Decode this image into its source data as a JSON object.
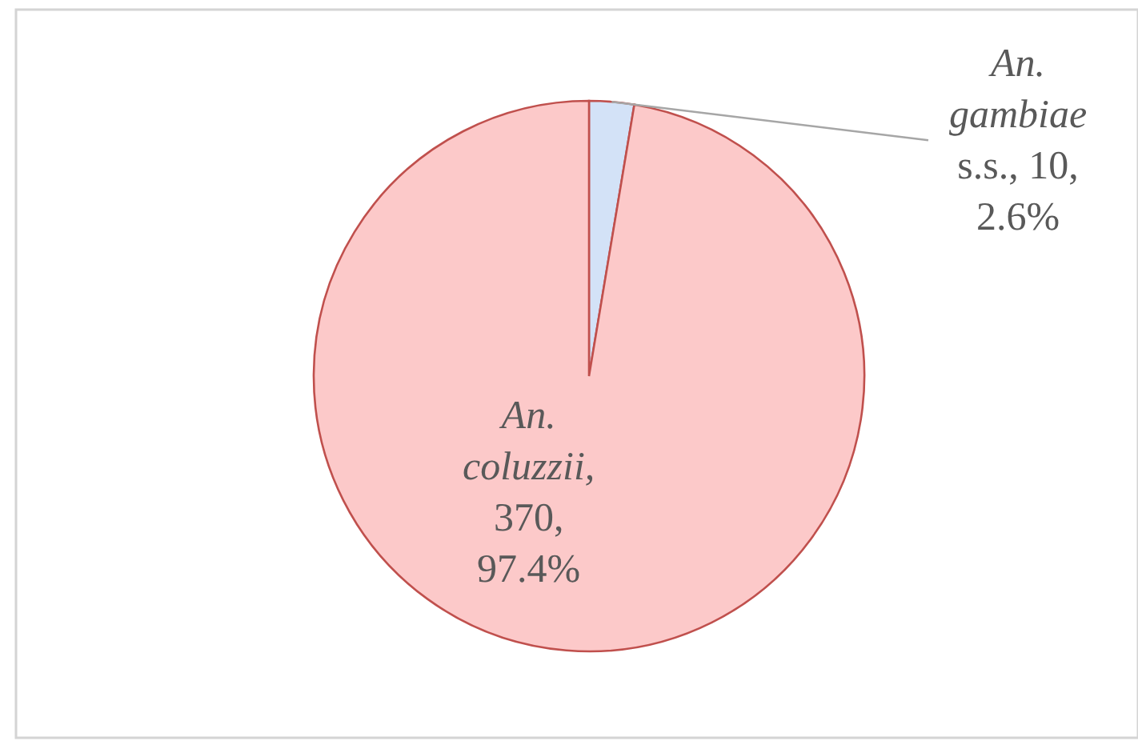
{
  "chart_data": {
    "type": "pie",
    "categories": [
      "An. gambiae s.s.",
      "An. coluzzii"
    ],
    "values": [
      10,
      370
    ],
    "value_labels": [
      ", 10, 2.6%",
      ", 370, 97.4%"
    ],
    "colors": [
      "#d3e2f7",
      "#fcc9c9"
    ],
    "legend": false
  }
}
